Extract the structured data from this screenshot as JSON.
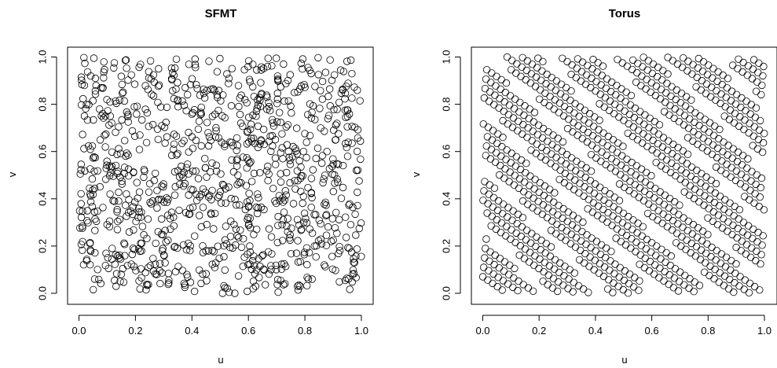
{
  "chart_data": [
    {
      "type": "scatter",
      "title": "SFMT",
      "xlabel": "u",
      "ylabel": "v",
      "xlim": [
        0,
        1
      ],
      "ylim": [
        0,
        1
      ],
      "xticks": [
        "0.0",
        "0.2",
        "0.4",
        "0.6",
        "0.8",
        "1.0"
      ],
      "yticks": [
        "0.0",
        "0.2",
        "0.4",
        "0.6",
        "0.8",
        "1.0"
      ],
      "grid": false,
      "generator": "SFMT",
      "n_points": 1000,
      "points": []
    },
    {
      "type": "scatter",
      "title": "Torus",
      "xlabel": "u",
      "ylabel": "v",
      "xlim": [
        0,
        1
      ],
      "ylim": [
        0,
        1
      ],
      "xticks": [
        "0.0",
        "0.2",
        "0.4",
        "0.6",
        "0.8",
        "1.0"
      ],
      "yticks": [
        "0.0",
        "0.2",
        "0.4",
        "0.6",
        "0.8",
        "1.0"
      ],
      "grid": false,
      "generator": "Torus",
      "n_points": 1000,
      "points": []
    }
  ]
}
